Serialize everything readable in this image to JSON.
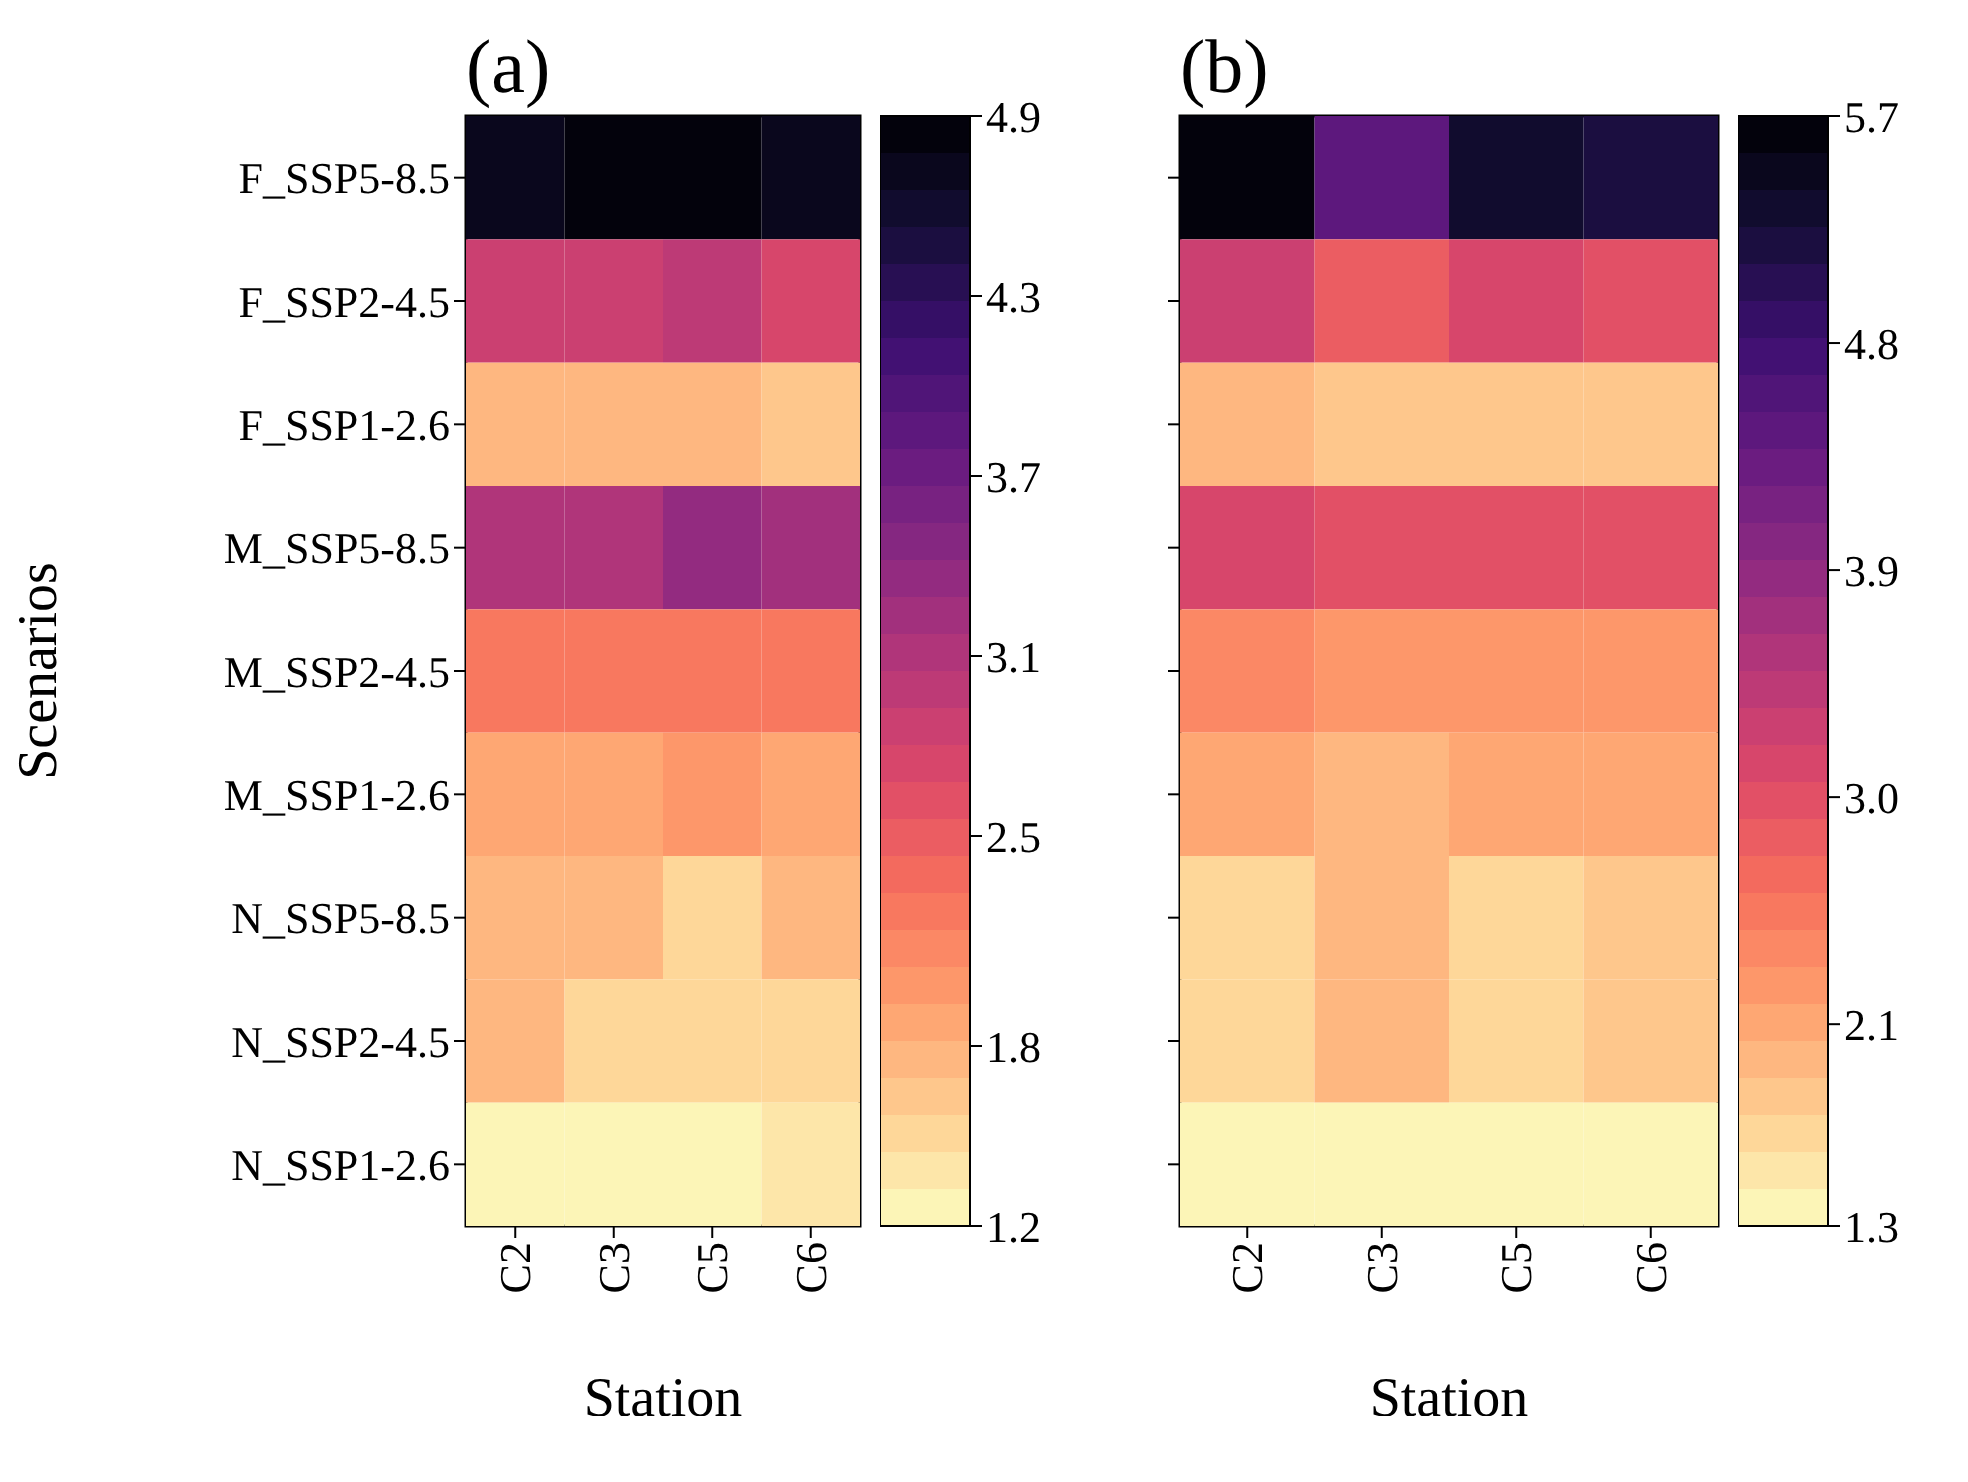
{
  "chart_data": [
    {
      "type": "heatmap",
      "title": "(a)",
      "xlabel": "Station",
      "ylabel": "Scenarios",
      "categories": [
        "C2",
        "C3",
        "C5",
        "C6"
      ],
      "y_categories": [
        "F_SSP5-8.5",
        "F_SSP2-4.5",
        "F_SSP1-2.6",
        "M_SSP5-8.5",
        "M_SSP2-4.5",
        "M_SSP1-2.6",
        "N_SSP5-8.5",
        "N_SSP2-4.5",
        "N_SSP1-2.6"
      ],
      "cells": [
        [
          4.7,
          4.8,
          4.9,
          4.7
        ],
        [
          2.9,
          2.9,
          3.0,
          2.8
        ],
        [
          1.7,
          1.7,
          1.7,
          1.6
        ],
        [
          3.1,
          3.1,
          3.3,
          3.2
        ],
        [
          2.2,
          2.2,
          2.2,
          2.2
        ],
        [
          1.9,
          1.9,
          2.0,
          1.9
        ],
        [
          1.7,
          1.7,
          1.5,
          1.8
        ],
        [
          1.7,
          1.5,
          1.5,
          1.5
        ],
        [
          1.3,
          1.3,
          1.3,
          1.4
        ]
      ],
      "clim": [
        1.2,
        4.9
      ],
      "cticks": [
        1.2,
        1.8,
        2.5,
        3.1,
        3.7,
        4.3,
        4.9
      ]
    },
    {
      "type": "heatmap",
      "title": "(b)",
      "xlabel": "Station",
      "categories": [
        "C2",
        "C3",
        "C5",
        "C6"
      ],
      "y_categories": [
        null,
        null,
        null,
        null,
        null,
        null,
        null,
        null,
        null
      ],
      "tick_labels": "x",
      "cells": [
        [
          5.7,
          4.5,
          5.4,
          5.2
        ],
        [
          3.3,
          2.8,
          3.1,
          3.0
        ],
        [
          1.9,
          1.8,
          1.8,
          1.8
        ],
        [
          3.2,
          3.0,
          3.0,
          3.0
        ],
        [
          2.4,
          2.2,
          2.2,
          2.2
        ],
        [
          2.1,
          2.0,
          2.1,
          2.1
        ],
        [
          1.7,
          2.0,
          1.7,
          1.8
        ],
        [
          1.7,
          1.9,
          1.7,
          1.8
        ],
        [
          1.4,
          1.4,
          1.4,
          1.4
        ]
      ],
      "clim": [
        1.3,
        5.7
      ],
      "cticks": [
        1.3,
        2.1,
        {
          "value": 3.0,
          "label": "3.0"
        },
        3.9,
        4.8,
        5.7
      ]
    }
  ]
}
